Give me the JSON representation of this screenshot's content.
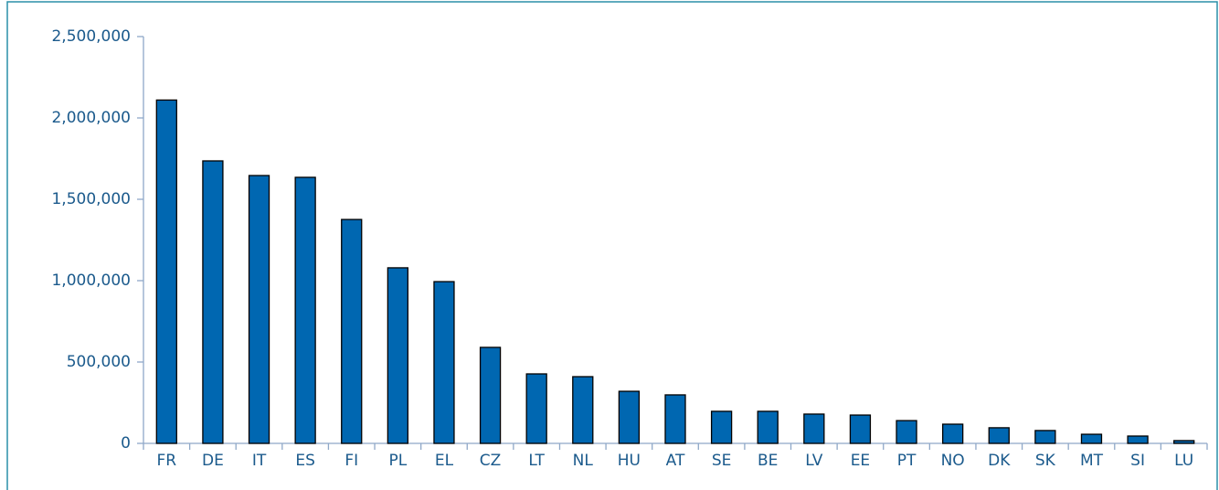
{
  "chart_data": {
    "type": "bar",
    "categories": [
      "FR",
      "DE",
      "IT",
      "ES",
      "FI",
      "PL",
      "EL",
      "CZ",
      "LT",
      "NL",
      "HU",
      "AT",
      "SE",
      "BE",
      "LV",
      "EE",
      "PT",
      "NO",
      "DK",
      "SK",
      "MT",
      "SI",
      "LU"
    ],
    "values": [
      2110000,
      1736000,
      1646000,
      1635000,
      1376000,
      1079000,
      994000,
      590000,
      427000,
      410000,
      320000,
      298000,
      197000,
      197000,
      180000,
      174000,
      140000,
      118000,
      96000,
      79000,
      56000,
      45000,
      17000
    ],
    "color": "#0067b1",
    "ylim": [
      0,
      2500000
    ],
    "yticks": [
      0,
      {
        "value": 500000,
        "label": "500,000"
      },
      {
        "value": 1000000,
        "label": "1,000,000"
      },
      {
        "value": 1500000,
        "label": "1,500,000"
      },
      {
        "value": 2000000,
        "label": "2,000,000"
      },
      {
        "value": 2500000,
        "label": "2,500,000"
      }
    ],
    "grid": false
  }
}
